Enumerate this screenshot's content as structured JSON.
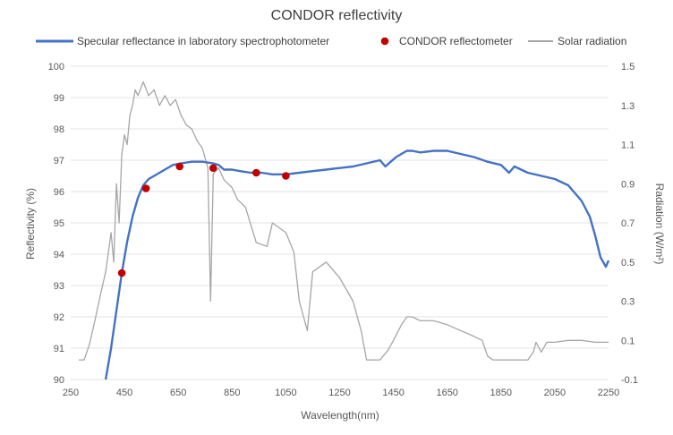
{
  "chart_data": {
    "type": "line",
    "title": "CONDOR reflectivity",
    "xlabel": "Wavelength(nm)",
    "ylabel": "Reflectivity (%)",
    "y2label": "Radiation (W/m²)",
    "xlim": [
      250,
      2250
    ],
    "ylim": [
      90,
      100
    ],
    "y2lim": [
      -0.1,
      1.5
    ],
    "x_ticks": [
      250,
      450,
      650,
      850,
      1050,
      1250,
      1450,
      1650,
      1850,
      2050,
      2250
    ],
    "y_ticks": [
      90,
      91,
      92,
      93,
      94,
      95,
      96,
      97,
      98,
      99,
      100
    ],
    "y2_ticks": [
      "-0.1",
      "0.1",
      "0.3",
      "0.5",
      "0.7",
      "0.9",
      "1.1",
      "1.3",
      "1.5"
    ],
    "grid": "horizontal",
    "legend_position": "top",
    "colors": {
      "specular": "#4472c4",
      "condor": "#c00000",
      "solar": "#a6a6a6"
    },
    "series": [
      {
        "name": "Specular reflectance in laboratory spectrophotometer",
        "axis": "left",
        "style": "line",
        "x": [
          380,
          400,
          420,
          440,
          460,
          480,
          500,
          520,
          540,
          560,
          580,
          600,
          630,
          660,
          700,
          740,
          780,
          800,
          820,
          850,
          880,
          920,
          960,
          1000,
          1050,
          1100,
          1150,
          1200,
          1250,
          1300,
          1350,
          1400,
          1420,
          1440,
          1460,
          1500,
          1520,
          1550,
          1600,
          1650,
          1700,
          1750,
          1800,
          1850,
          1880,
          1900,
          1950,
          2000,
          2050,
          2100,
          2120,
          2150,
          2180,
          2200,
          2220,
          2240,
          2250
        ],
        "values": [
          89.7,
          91.0,
          92.2,
          93.4,
          94.4,
          95.2,
          95.8,
          96.2,
          96.4,
          96.5,
          96.6,
          96.7,
          96.85,
          96.9,
          96.95,
          96.95,
          96.9,
          96.85,
          96.7,
          96.7,
          96.65,
          96.6,
          96.6,
          96.55,
          96.55,
          96.6,
          96.65,
          96.7,
          96.75,
          96.8,
          96.9,
          97.0,
          96.8,
          96.95,
          97.1,
          97.3,
          97.3,
          97.25,
          97.3,
          97.3,
          97.2,
          97.1,
          96.95,
          96.85,
          96.6,
          96.8,
          96.6,
          96.5,
          96.4,
          96.2,
          96.0,
          95.7,
          95.2,
          94.6,
          93.9,
          93.6,
          93.8
        ]
      },
      {
        "name": "CONDOR reflectometer",
        "axis": "left",
        "style": "markers",
        "x": [
          440,
          530,
          655,
          780,
          940,
          1050
        ],
        "values": [
          93.4,
          96.1,
          96.8,
          96.75,
          96.6,
          96.5
        ]
      },
      {
        "name": "Solar radiation",
        "axis": "right",
        "style": "line",
        "x": [
          280,
          300,
          320,
          340,
          360,
          380,
          400,
          410,
          420,
          430,
          440,
          450,
          460,
          470,
          480,
          490,
          500,
          520,
          540,
          560,
          580,
          600,
          620,
          640,
          660,
          680,
          700,
          720,
          740,
          760,
          770,
          780,
          800,
          820,
          850,
          870,
          900,
          940,
          980,
          1000,
          1050,
          1080,
          1100,
          1130,
          1150,
          1200,
          1250,
          1300,
          1330,
          1350,
          1370,
          1400,
          1430,
          1450,
          1480,
          1500,
          1520,
          1550,
          1600,
          1650,
          1700,
          1750,
          1780,
          1800,
          1820,
          1850,
          1900,
          1950,
          1970,
          1980,
          2000,
          2020,
          2050,
          2100,
          2150,
          2200,
          2250
        ],
        "values": [
          0.0,
          0.0,
          0.08,
          0.2,
          0.33,
          0.45,
          0.65,
          0.5,
          0.9,
          0.7,
          1.05,
          1.15,
          1.1,
          1.25,
          1.3,
          1.38,
          1.35,
          1.42,
          1.35,
          1.38,
          1.3,
          1.35,
          1.3,
          1.33,
          1.25,
          1.2,
          1.18,
          1.12,
          1.08,
          0.98,
          0.3,
          0.95,
          0.98,
          0.92,
          0.88,
          0.82,
          0.78,
          0.6,
          0.58,
          0.7,
          0.65,
          0.55,
          0.3,
          0.15,
          0.45,
          0.5,
          0.42,
          0.3,
          0.15,
          0.0,
          0.0,
          0.0,
          0.05,
          0.1,
          0.18,
          0.22,
          0.22,
          0.2,
          0.2,
          0.18,
          0.15,
          0.12,
          0.1,
          0.02,
          0.0,
          0.0,
          0.0,
          0.0,
          0.04,
          0.09,
          0.04,
          0.09,
          0.09,
          0.1,
          0.1,
          0.09,
          0.09
        ]
      }
    ]
  }
}
